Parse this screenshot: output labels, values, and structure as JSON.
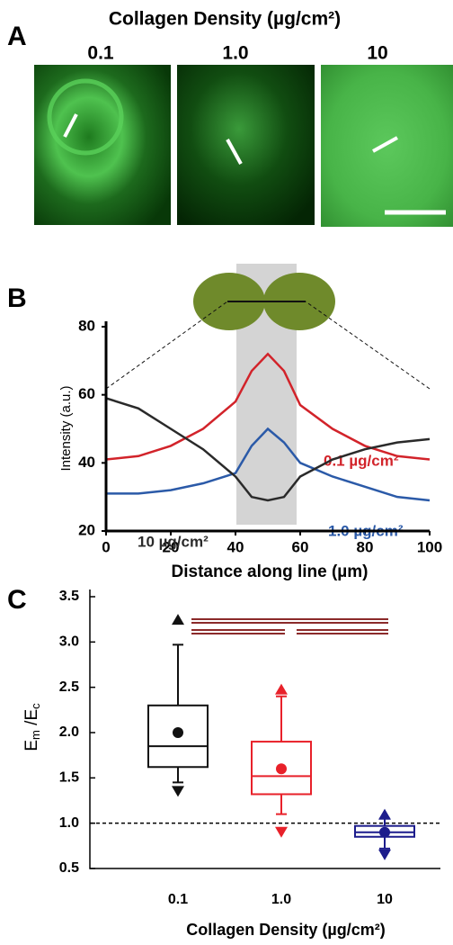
{
  "panel_a": {
    "label": "A",
    "title": "Collagen Density (µg/cm²)",
    "columns": [
      "0.1",
      "1.0",
      "10"
    ]
  },
  "chart_data": [
    {
      "type": "line",
      "panel_label": "B",
      "x_label": "Distance along line (µm)",
      "y_label": "Intensity (a.u.)",
      "x": [
        0,
        10,
        20,
        30,
        40,
        45,
        50,
        55,
        60,
        70,
        80,
        90,
        100
      ],
      "series": [
        {
          "name": "0.1 µg/cm²",
          "color": "#d2232a",
          "values": [
            41,
            42,
            45,
            50,
            58,
            67,
            72,
            67,
            57,
            50,
            45,
            42,
            41
          ]
        },
        {
          "name": "1.0 µg/cm²",
          "color": "#2b5aa8",
          "values": [
            31,
            31,
            32,
            34,
            37,
            45,
            50,
            46,
            40,
            36,
            33,
            30,
            29
          ]
        },
        {
          "name": "10 µg/cm²",
          "color": "#2a2a2a",
          "values": [
            59,
            56,
            50,
            44,
            36,
            30,
            29,
            30,
            36,
            41,
            44,
            46,
            47
          ]
        }
      ],
      "xlim": [
        0,
        100
      ],
      "xticks": [
        0,
        20,
        40,
        60,
        80,
        100
      ],
      "ylim": [
        20,
        80
      ],
      "yticks": [
        20,
        40,
        60,
        80
      ]
    },
    {
      "type": "box",
      "panel_label": "C",
      "x_label": "Collagen Density (µg/cm²)",
      "y_label": [
        "E",
        "m",
        " /E",
        "c"
      ],
      "categories": [
        "0.1",
        "1.0",
        "10"
      ],
      "boxes": [
        {
          "color": "#111111",
          "min": 1.35,
          "whisker_low": 1.45,
          "q1": 1.62,
          "median": 1.85,
          "q3": 2.3,
          "whisker_high": 2.97,
          "max": 3.25,
          "mean": 2.0
        },
        {
          "color": "#e8212a",
          "min": 0.9,
          "whisker_low": 1.1,
          "q1": 1.32,
          "median": 1.52,
          "q3": 1.9,
          "whisker_high": 2.4,
          "max": 2.48,
          "mean": 1.6
        },
        {
          "color": "#1c1c8c",
          "min": 0.65,
          "whisker_low": 0.72,
          "q1": 0.85,
          "median": 0.9,
          "q3": 0.97,
          "whisker_high": 1.05,
          "max": 1.1,
          "mean": 0.9
        }
      ],
      "reference_line": 1,
      "ylim": [
        0.5,
        3.5
      ],
      "yticks": [
        0.5,
        {
          "value": 1,
          "label": "1.0"
        },
        1.5,
        {
          "value": 2,
          "label": "2.0"
        },
        2.5,
        {
          "value": 3,
          "label": "3.0"
        },
        3.5
      ]
    }
  ]
}
